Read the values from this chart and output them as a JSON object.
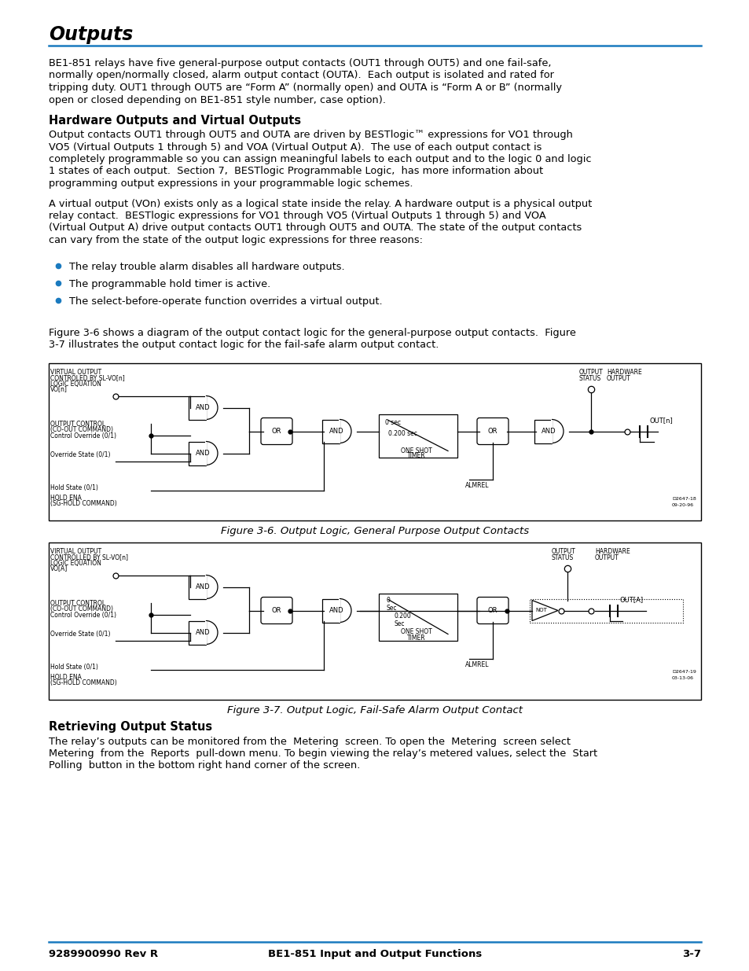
{
  "title": "Outputs",
  "section1_heading": "Hardware Outputs and Virtual Outputs",
  "section2_heading": "Retrieving Output Status",
  "para1_lines": [
    "BE1-851 relays have five general-purpose output contacts (OUT1 through OUT5) and one fail-safe,",
    "normally open/normally closed, alarm output contact (OUTA).  Each output is isolated and rated for",
    "tripping duty. OUT1 through OUT5 are “Form A” (normally open) and OUTA is “Form A or B” (normally",
    "open or closed depending on BE1-851 style number, case option)."
  ],
  "para2_lines": [
    "Output contacts OUT1 through OUT5 and OUTA are driven by BESTlogic™ expressions for VO1 through",
    "VO5 (Virtual Outputs 1 through 5) and VOA (Virtual Output A).  The use of each output contact is",
    "completely programmable so you can assign meaningful labels to each output and to the logic 0 and logic",
    "1 states of each output.  Section 7,  BESTlogic Programmable Logic,  has more information about",
    "programming output expressions in your programmable logic schemes."
  ],
  "para3_lines": [
    "A virtual output (VOn) exists only as a logical state inside the relay. A hardware output is a physical output",
    "relay contact.  BESTlogic expressions for VO1 through VO5 (Virtual Outputs 1 through 5) and VOA",
    "(Virtual Output A) drive output contacts OUT1 through OUT5 and OUTA. The state of the output contacts",
    "can vary from the state of the output logic expressions for three reasons:"
  ],
  "bullets": [
    "The relay trouble alarm disables all hardware outputs.",
    "The programmable hold timer is active.",
    "The select-before-operate function overrides a virtual output."
  ],
  "para4_lines": [
    "Figure 3-6 shows a diagram of the output contact logic for the general-purpose output contacts.  Figure",
    "3-7 illustrates the output contact logic for the fail-safe alarm output contact."
  ],
  "fig1_caption": "Figure 3-6. Output Logic, General Purpose Output Contacts",
  "fig2_caption": "Figure 3-7. Output Logic, Fail-Safe Alarm Output Contact",
  "para5_lines": [
    "The relay’s outputs can be monitored from the  Metering  screen. To open the  Metering  screen select",
    "Metering  from the  Reports  pull-down menu. To begin viewing the relay’s metered values, select the  Start",
    "Polling  button in the bottom right hand corner of the screen."
  ],
  "footer_left": "9289900990 Rev R",
  "footer_center": "BE1-851 Input and Output Functions",
  "footer_right": "3-7",
  "bg_color": "#ffffff",
  "text_color": "#000000",
  "heading_color": "#000000",
  "title_color": "#000000",
  "line_color": "#1a7abf",
  "bullet_color": "#1a7abf"
}
